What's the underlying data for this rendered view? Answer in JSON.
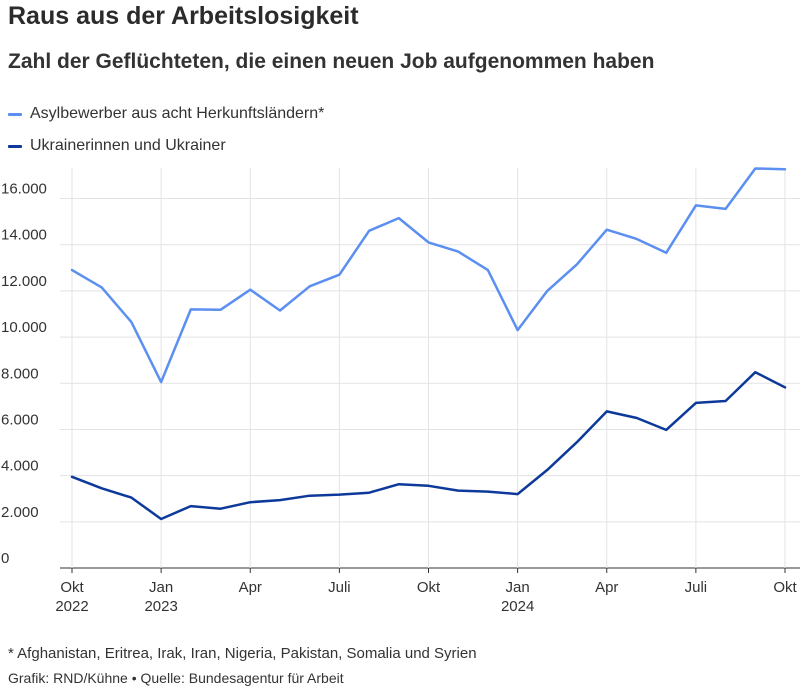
{
  "header": {
    "title": "Raus aus der Arbeitslosigkeit",
    "subtitle": "Zahl der Geflüchteten, die einen neuen Job aufgenommen haben"
  },
  "legend": [
    {
      "label": "Asylbewerber aus acht Herkunftsländern*",
      "color": "#5b8ff0"
    },
    {
      "label": "Ukrainerinnen und Ukrainer",
      "color": "#0d3a9a"
    }
  ],
  "footer": {
    "footnote": "* Afghanistan, Eritrea, Irak, Iran, Nigeria, Pakistan, Somalia und Syrien",
    "credit": "Grafik: RND/Kühne • Quelle: Bundesagentur für Arbeit"
  },
  "chart_data": {
    "type": "line",
    "x": [
      "2022-10",
      "2022-11",
      "2022-12",
      "2023-01",
      "2023-02",
      "2023-03",
      "2023-04",
      "2023-05",
      "2023-06",
      "2023-07",
      "2023-08",
      "2023-09",
      "2023-10",
      "2023-11",
      "2023-12",
      "2024-01",
      "2024-02",
      "2024-03",
      "2024-04",
      "2024-05",
      "2024-06",
      "2024-07",
      "2024-08",
      "2024-09",
      "2024-10"
    ],
    "series": [
      {
        "name": "Asylbewerber aus acht Herkunftsländern*",
        "color": "#5b8ff0",
        "values": [
          12900,
          12150,
          10650,
          8050,
          11200,
          11180,
          12050,
          11150,
          12200,
          12700,
          14600,
          15150,
          14100,
          13700,
          12900,
          10300,
          12000,
          13150,
          14650,
          14250,
          13650,
          15700,
          15550,
          17300,
          17270
        ]
      },
      {
        "name": "Ukrainerinnen und Ukrainer",
        "color": "#0d3a9a",
        "values": [
          3950,
          3450,
          3050,
          2120,
          2680,
          2570,
          2850,
          2940,
          3130,
          3180,
          3260,
          3630,
          3560,
          3350,
          3310,
          3200,
          4250,
          5450,
          6780,
          6500,
          5980,
          7150,
          7230,
          8480,
          7820
        ]
      }
    ],
    "ylim": [
      0,
      17300
    ],
    "yticks": [
      0,
      2000,
      4000,
      6000,
      8000,
      10000,
      12000,
      14000,
      16000
    ],
    "ytick_labels": [
      "0",
      "2.000",
      "4.000",
      "6.000",
      "8.000",
      "10.000",
      "12.000",
      "14.000",
      "16.000"
    ],
    "xticks": [
      {
        "label": "Okt",
        "year": "2022",
        "x": "2022-10"
      },
      {
        "label": "Jan",
        "year": "2023",
        "x": "2023-01"
      },
      {
        "label": "Apr",
        "year": "",
        "x": "2023-04"
      },
      {
        "label": "Juli",
        "year": "",
        "x": "2023-07"
      },
      {
        "label": "Okt",
        "year": "",
        "x": "2023-10"
      },
      {
        "label": "Jan",
        "year": "2024",
        "x": "2024-01"
      },
      {
        "label": "Apr",
        "year": "",
        "x": "2024-04"
      },
      {
        "label": "Juli",
        "year": "",
        "x": "2024-07"
      },
      {
        "label": "Okt",
        "year": "",
        "x": "2024-10"
      }
    ],
    "grid": true
  }
}
